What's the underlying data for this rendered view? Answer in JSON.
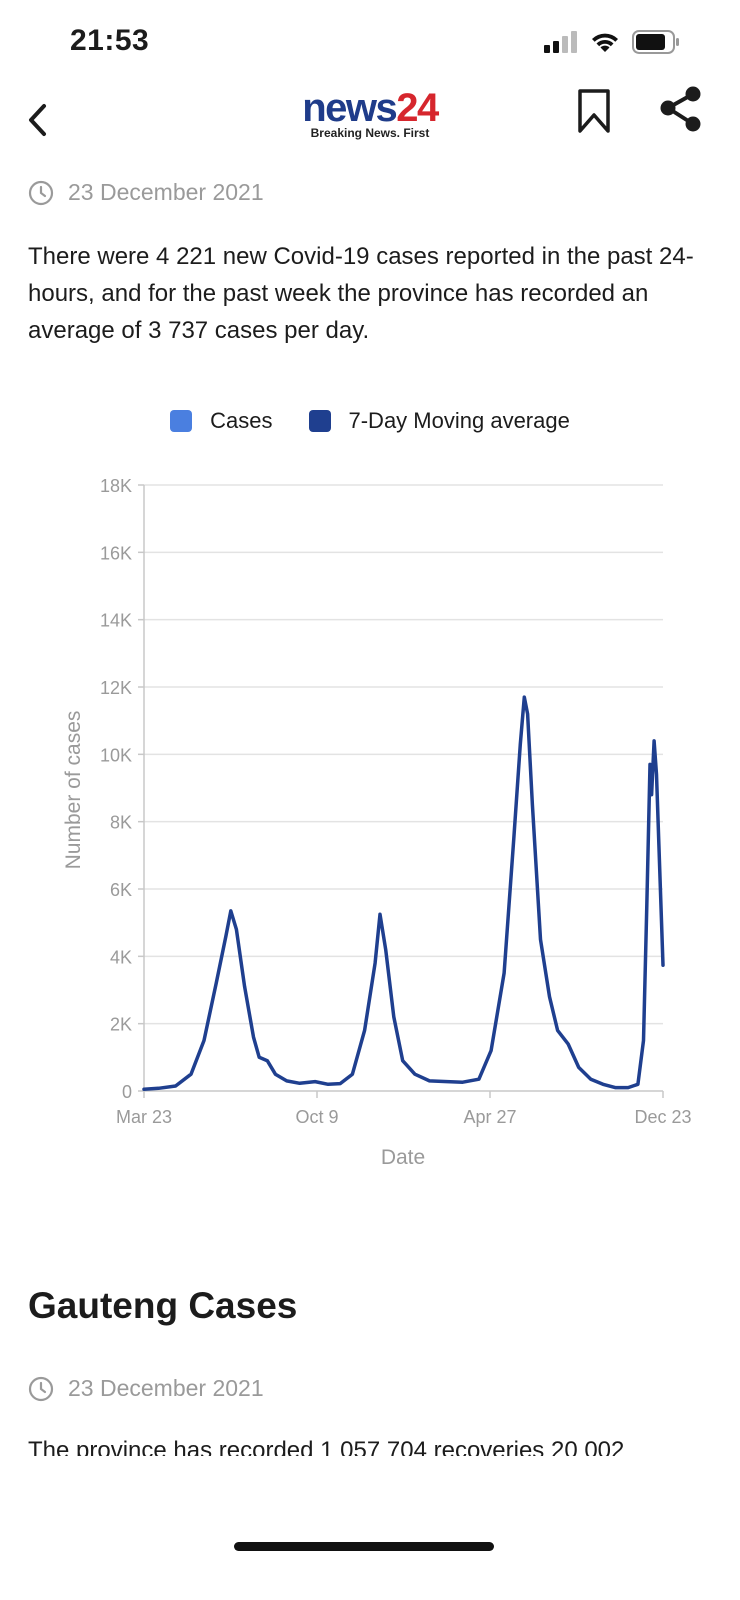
{
  "status_bar": {
    "time": "21:53"
  },
  "header": {
    "logo": {
      "word": "news",
      "number": "24",
      "tagline": "Breaking News. First"
    }
  },
  "article": {
    "date": "23 December 2021",
    "paragraph": "There were 4 221 new Covid-19 cases reported in the past 24-hours, and for the past week the province has recorded an average of 3 737 cases per day."
  },
  "chart": {
    "legend": [
      {
        "label": "Cases",
        "color": "#4a7fe0"
      },
      {
        "label": "7-Day Moving average",
        "color": "#1f3f8f"
      }
    ]
  },
  "chart_data": {
    "type": "line",
    "title": "",
    "xlabel": "Date",
    "ylabel": "Number of cases",
    "ylim": [
      0,
      18000
    ],
    "yticks": [
      "0",
      "2K",
      "4K",
      "6K",
      "8K",
      "10K",
      "12K",
      "14K",
      "16K",
      "18K"
    ],
    "xticks": [
      "Mar 23",
      "Oct 9",
      "Apr 27",
      "Dec 23"
    ],
    "grid": true,
    "legend_placement": "top",
    "x_start": "2020-03-23",
    "x_end": "2021-12-23",
    "series": [
      {
        "name": "7-Day Moving average",
        "color": "#1f3f8f",
        "points": [
          [
            "2020-03-23",
            50
          ],
          [
            "2020-04-10",
            80
          ],
          [
            "2020-05-01",
            150
          ],
          [
            "2020-05-20",
            500
          ],
          [
            "2020-06-05",
            1500
          ],
          [
            "2020-06-20",
            3200
          ],
          [
            "2020-07-02",
            4600
          ],
          [
            "2020-07-08",
            5350
          ],
          [
            "2020-07-15",
            4800
          ],
          [
            "2020-07-25",
            3100
          ],
          [
            "2020-08-05",
            1600
          ],
          [
            "2020-08-12",
            1000
          ],
          [
            "2020-08-22",
            900
          ],
          [
            "2020-09-01",
            500
          ],
          [
            "2020-09-15",
            300
          ],
          [
            "2020-10-01",
            230
          ],
          [
            "2020-10-20",
            280
          ],
          [
            "2020-11-05",
            200
          ],
          [
            "2020-11-20",
            220
          ],
          [
            "2020-12-05",
            500
          ],
          [
            "2020-12-20",
            1800
          ],
          [
            "2021-01-02",
            3800
          ],
          [
            "2021-01-08",
            5250
          ],
          [
            "2021-01-15",
            4200
          ],
          [
            "2021-01-25",
            2200
          ],
          [
            "2021-02-05",
            900
          ],
          [
            "2021-02-20",
            500
          ],
          [
            "2021-03-10",
            300
          ],
          [
            "2021-04-01",
            280
          ],
          [
            "2021-04-20",
            260
          ],
          [
            "2021-05-10",
            350
          ],
          [
            "2021-05-25",
            1200
          ],
          [
            "2021-06-10",
            3500
          ],
          [
            "2021-06-22",
            7500
          ],
          [
            "2021-06-30",
            10300
          ],
          [
            "2021-07-05",
            11700
          ],
          [
            "2021-07-09",
            11200
          ],
          [
            "2021-07-15",
            8500
          ],
          [
            "2021-07-25",
            4500
          ],
          [
            "2021-08-05",
            2800
          ],
          [
            "2021-08-15",
            1800
          ],
          [
            "2021-08-28",
            1400
          ],
          [
            "2021-09-10",
            700
          ],
          [
            "2021-09-25",
            350
          ],
          [
            "2021-10-10",
            200
          ],
          [
            "2021-10-25",
            100
          ],
          [
            "2021-11-10",
            100
          ],
          [
            "2021-11-22",
            200
          ],
          [
            "2021-11-29",
            1500
          ],
          [
            "2021-12-03",
            5500
          ],
          [
            "2021-12-07",
            9700
          ],
          [
            "2021-12-09",
            8800
          ],
          [
            "2021-12-12",
            10400
          ],
          [
            "2021-12-15",
            9400
          ],
          [
            "2021-12-18",
            7300
          ],
          [
            "2021-12-23",
            3737
          ]
        ]
      }
    ]
  },
  "section": {
    "title": "Gauteng Cases",
    "date": "23 December 2021",
    "paragraph_start": "The province has recorded 1 057 704 recoveries 20 002"
  }
}
